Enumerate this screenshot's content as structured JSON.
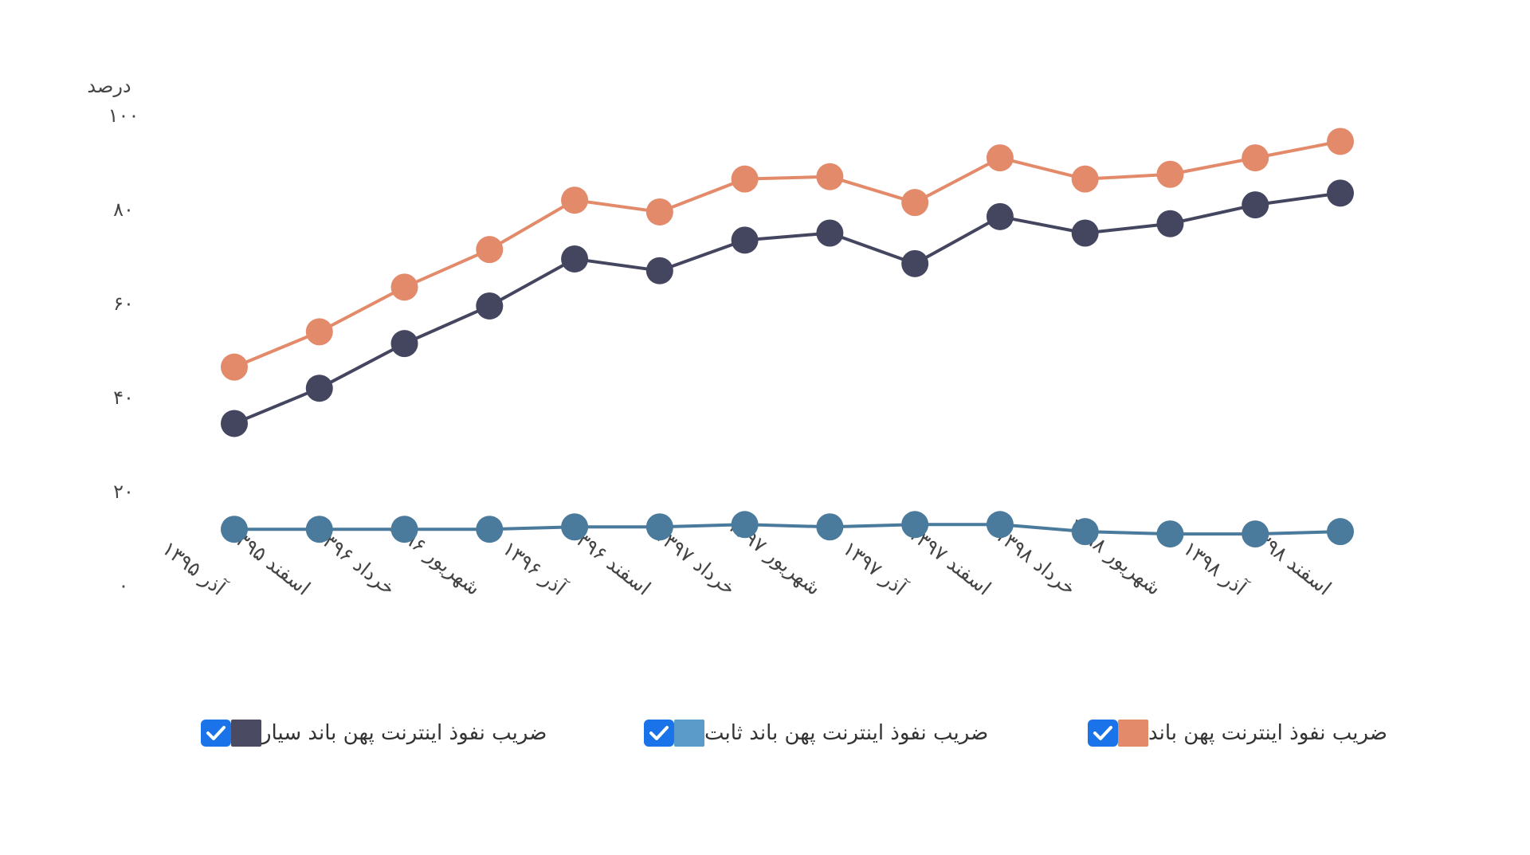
{
  "chart_data": {
    "type": "line",
    "y_unit_label": "درصد",
    "ylim": [
      0,
      100
    ],
    "y_ticks": [
      "۰",
      "۲۰",
      "۴۰",
      "۶۰",
      "۸۰",
      "۱۰۰"
    ],
    "y_tick_values": [
      0,
      20,
      40,
      60,
      80,
      100
    ],
    "categories": [
      "آذر ۱۳۹۵",
      "اسفند ۱۳۹۵",
      "خرداد ۱۳۹۶",
      "شهریور ۱۳۹۶",
      "آذر ۱۳۹۶",
      "اسفند ۱۳۹۶",
      "خرداد ۱۳۹۷",
      "شهریور ۱۳۹۷",
      "آذر ۱۳۹۷",
      "اسفند ۱۳۹۷",
      "خرداد ۱۳۹۸",
      "شهریور ۱۳۹۸",
      "آذر ۱۳۹۸",
      "اسفند ۱۳۹۸"
    ],
    "series": [
      {
        "name": "ضریب نفوذ اینترنت پهن باند",
        "color": "#e38a6b",
        "values": [
          46.5,
          54,
          63.5,
          71.5,
          82,
          79.5,
          86.5,
          87,
          81.5,
          91,
          86.5,
          87.5,
          91,
          94.5
        ]
      },
      {
        "name": "ضریب نفوذ اینترنت پهن باند ثابت",
        "color": "#4a7a9c",
        "values": [
          12,
          12,
          12,
          12,
          12.5,
          12.5,
          13,
          12.5,
          13,
          13,
          11.5,
          11,
          11,
          11.5
        ]
      },
      {
        "name": "ضریب نفوذ اینترنت پهن باند سیار",
        "color": "#444660",
        "values": [
          34.5,
          42,
          51.5,
          59.5,
          69.5,
          67,
          73.5,
          75,
          68.5,
          78.5,
          75,
          77,
          81,
          83.5
        ]
      }
    ],
    "grid": false,
    "legend_position": "bottom"
  },
  "legend": [
    {
      "label": "ضریب نفوذ اینترنت پهن باند",
      "swatch_color": "#e38a6b",
      "checked": true
    },
    {
      "label": "ضریب نفوذ اینترنت پهن باند ثابت",
      "swatch_color": "#5b9bc9",
      "checked": true
    },
    {
      "label": "ضریب نفوذ اینترنت پهن باند سیار",
      "swatch_color": "#4a4b63",
      "checked": true
    }
  ],
  "check_color": "#1a73e8"
}
